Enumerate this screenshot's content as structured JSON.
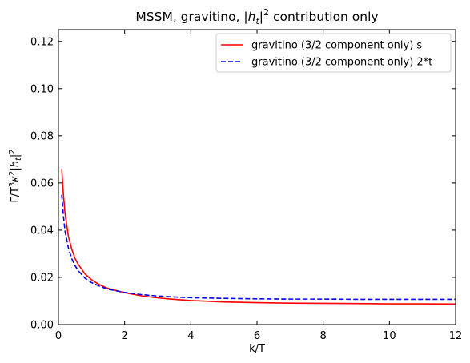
{
  "chart_data": {
    "type": "line",
    "title": "MSSM, gravitino, |h_t|² contribution only",
    "title_parts": {
      "prefix": "MSSM, gravitino, |",
      "symbol": "h",
      "subscript": "t",
      "suffix": "|",
      "sup": "2",
      "rest": " contribution only"
    },
    "xlabel": "k/T",
    "ylabel": "Γ/T³κ²|h_t|²",
    "ylabel_parts": {
      "a": "Γ/T",
      "a_sup": "3",
      "kappa": "κ",
      "k_sup": "2",
      "bar1": "|",
      "h": "h",
      "h_sub": "t",
      "bar2": "|",
      "h_sup": "2"
    },
    "xlim": [
      0,
      12
    ],
    "ylim": [
      0,
      0.125
    ],
    "xticks": [
      0,
      2,
      4,
      6,
      8,
      10,
      12
    ],
    "xtick_labels": [
      "0",
      "2",
      "4",
      "6",
      "8",
      "10",
      "12"
    ],
    "yticks": [
      0.0,
      0.02,
      0.04,
      0.06,
      0.08,
      0.1,
      0.12
    ],
    "ytick_labels": [
      "0.00",
      "0.02",
      "0.04",
      "0.06",
      "0.08",
      "0.10",
      "0.12"
    ],
    "grid": false,
    "legend_position": "top-right",
    "series": [
      {
        "name": "gravitino (3/2 component only) s",
        "color": "#ff0000",
        "style": "solid",
        "x": [
          0.1,
          0.15,
          0.2,
          0.3,
          0.4,
          0.5,
          0.6,
          0.8,
          1.0,
          1.25,
          1.5,
          2.0,
          2.5,
          3.0,
          3.5,
          4.0,
          5.0,
          6.0,
          7.0,
          8.0,
          9.0,
          10.0,
          11.0,
          12.0
        ],
        "y": [
          0.066,
          0.055,
          0.047,
          0.0375,
          0.032,
          0.028,
          0.0255,
          0.0215,
          0.019,
          0.0168,
          0.0153,
          0.0135,
          0.0122,
          0.0113,
          0.0107,
          0.0102,
          0.0096,
          0.0093,
          0.0091,
          0.009,
          0.0089,
          0.0088,
          0.0088,
          0.0087
        ]
      },
      {
        "name": "gravitino (3/2 component only) 2*t",
        "color": "#0000ff",
        "style": "dashed",
        "x": [
          0.1,
          0.15,
          0.2,
          0.3,
          0.4,
          0.5,
          0.6,
          0.8,
          1.0,
          1.25,
          1.5,
          2.0,
          2.5,
          3.0,
          3.5,
          4.0,
          5.0,
          6.0,
          7.0,
          8.0,
          9.0,
          10.0,
          11.0,
          12.0
        ],
        "y": [
          0.055,
          0.046,
          0.0395,
          0.0325,
          0.028,
          0.025,
          0.0228,
          0.0197,
          0.0178,
          0.0162,
          0.015,
          0.0136,
          0.0127,
          0.0121,
          0.0117,
          0.0114,
          0.0111,
          0.0109,
          0.0108,
          0.0108,
          0.0107,
          0.0107,
          0.0107,
          0.0107
        ]
      }
    ]
  }
}
